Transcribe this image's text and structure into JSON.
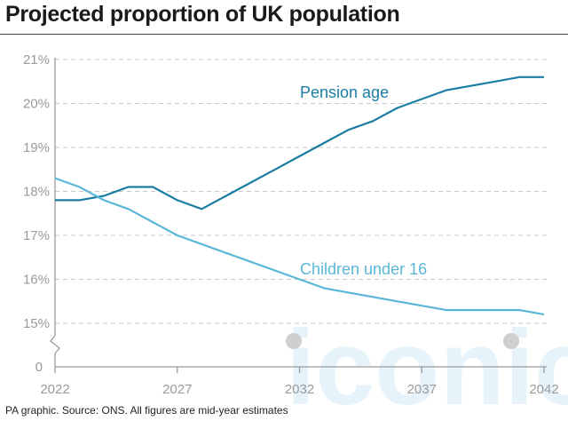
{
  "title": "Projected proportion of UK population",
  "source": "PA graphic. Source: ONS. All figures are mid-year estimates",
  "watermark": "iconic",
  "colors": {
    "pension": "#1b7da3",
    "children": "#5bb7d8",
    "grid": "#c8c8c8",
    "axis": "#9a9a9a",
    "watermark": "#e7f3fa"
  },
  "chart_data": {
    "type": "line",
    "title": "Projected proportion of UK population",
    "xlabel": "",
    "ylabel": "",
    "xlim": [
      2022,
      2042
    ],
    "ylim": [
      15,
      21
    ],
    "y_ticks": [
      "21%",
      "20%",
      "19%",
      "18%",
      "17%",
      "16%",
      "15%"
    ],
    "y_tick_values": [
      21,
      20,
      19,
      18,
      17,
      16,
      15
    ],
    "y_zero_label": "0",
    "x_ticks": [
      "2022",
      "2027",
      "2032",
      "2037",
      "2042"
    ],
    "x_tick_values": [
      2022,
      2027,
      2032,
      2037,
      2042
    ],
    "grid": "horizontal dashed",
    "axis_break": true,
    "series": [
      {
        "name": "Pension age",
        "x": [
          2022,
          2023,
          2024,
          2025,
          2026,
          2027,
          2028,
          2029,
          2030,
          2031,
          2032,
          2033,
          2034,
          2035,
          2036,
          2037,
          2038,
          2039,
          2040,
          2041,
          2042
        ],
        "values": [
          17.8,
          17.8,
          17.9,
          18.1,
          18.1,
          17.8,
          17.6,
          17.9,
          18.2,
          18.5,
          18.8,
          19.1,
          19.4,
          19.6,
          19.9,
          20.1,
          20.3,
          20.4,
          20.5,
          20.6,
          20.6
        ]
      },
      {
        "name": "Children under 16",
        "x": [
          2022,
          2023,
          2024,
          2025,
          2026,
          2027,
          2028,
          2029,
          2030,
          2031,
          2032,
          2033,
          2034,
          2035,
          2036,
          2037,
          2038,
          2039,
          2040,
          2041,
          2042
        ],
        "values": [
          18.3,
          18.1,
          17.8,
          17.6,
          17.3,
          17.0,
          16.8,
          16.6,
          16.4,
          16.2,
          16.0,
          15.8,
          15.7,
          15.6,
          15.5,
          15.4,
          15.3,
          15.3,
          15.3,
          15.3,
          15.2
        ]
      }
    ]
  }
}
